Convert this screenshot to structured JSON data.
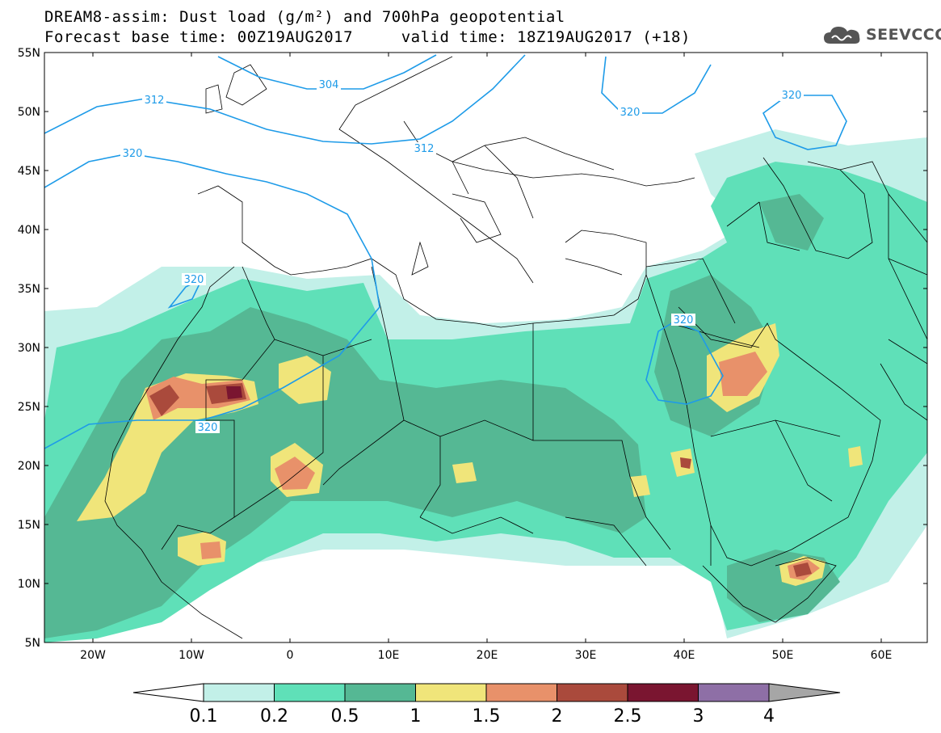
{
  "header": {
    "line1": "DREAM8-assim: Dust load (g/m²) and 700hPa geopotential",
    "line2": "Forecast base time: 00Z19AUG2017     valid time: 18Z19AUG2017 (+18)",
    "logo_text": "SEEVCCC",
    "logo_icon": "cloud-icon"
  },
  "axes": {
    "lat_labels": [
      "55N",
      "50N",
      "45N",
      "40N",
      "35N",
      "30N",
      "25N",
      "20N",
      "15N",
      "10N",
      "5N"
    ],
    "lon_labels": [
      "20W",
      "10W",
      "0",
      "10E",
      "20E",
      "30E",
      "40E",
      "50E",
      "60E"
    ]
  },
  "contours": [
    {
      "label": "304"
    },
    {
      "label": "312"
    },
    {
      "label": "312"
    },
    {
      "label": "320"
    },
    {
      "label": "320"
    },
    {
      "label": "320"
    },
    {
      "label": "320"
    },
    {
      "label": "320"
    }
  ],
  "colorbar": {
    "ticks": [
      "0.1",
      "0.2",
      "0.5",
      "1",
      "1.5",
      "2",
      "2.5",
      "3",
      "4"
    ],
    "colors": [
      "#c2f0e8",
      "#5fe0b8",
      "#55b894",
      "#f0e57a",
      "#e8916a",
      "#aa4a3c",
      "#7a1530",
      "#8e6fa6"
    ],
    "low_color": "#ffffff",
    "high_color": "#a6a6a6"
  }
}
